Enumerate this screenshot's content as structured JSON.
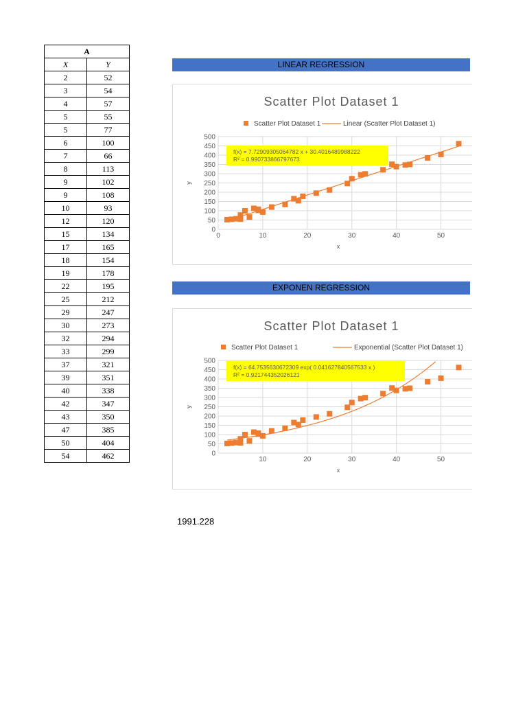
{
  "table": {
    "column_letter": "A",
    "x_header": "X",
    "y_header": "Y",
    "rows": [
      [
        "2",
        "52"
      ],
      [
        "3",
        "54"
      ],
      [
        "4",
        "57"
      ],
      [
        "5",
        "55"
      ],
      [
        "5",
        "77"
      ],
      [
        "6",
        "100"
      ],
      [
        "7",
        "66"
      ],
      [
        "8",
        "113"
      ],
      [
        "9",
        "102"
      ],
      [
        "9",
        "108"
      ],
      [
        "10",
        "93"
      ],
      [
        "12",
        "120"
      ],
      [
        "15",
        "134"
      ],
      [
        "17",
        "165"
      ],
      [
        "18",
        "154"
      ],
      [
        "19",
        "178"
      ],
      [
        "22",
        "195"
      ],
      [
        "25",
        "212"
      ],
      [
        "29",
        "247"
      ],
      [
        "30",
        "273"
      ],
      [
        "32",
        "294"
      ],
      [
        "33",
        "299"
      ],
      [
        "37",
        "321"
      ],
      [
        "39",
        "351"
      ],
      [
        "40",
        "338"
      ],
      [
        "42",
        "347"
      ],
      [
        "43",
        "350"
      ],
      [
        "47",
        "385"
      ],
      [
        "50",
        "404"
      ],
      [
        "54",
        "462"
      ]
    ]
  },
  "sections": {
    "linear_title": "LINEAR REGRESSION",
    "exp_title": "EXPONEN REGRESSION"
  },
  "footer_value": "1991.228",
  "chart_data": [
    {
      "type": "scatter",
      "title": "Scatter Plot Dataset 1",
      "xlabel": "x",
      "ylabel": "y",
      "xlim": [
        0,
        57
      ],
      "ylim": [
        0,
        500
      ],
      "xticks": [
        0,
        10,
        20,
        30,
        40,
        50
      ],
      "yticks": [
        0,
        50,
        100,
        150,
        200,
        250,
        300,
        350,
        400,
        450,
        500
      ],
      "grid": true,
      "legend_position": "top",
      "series": [
        {
          "name": "Scatter Plot Dataset 1",
          "color": "#ed7d31",
          "marker": "square",
          "x": [
            2,
            3,
            4,
            5,
            5,
            6,
            7,
            8,
            9,
            9,
            10,
            12,
            15,
            17,
            18,
            19,
            22,
            25,
            29,
            30,
            32,
            33,
            37,
            39,
            40,
            42,
            43,
            47,
            50,
            54
          ],
          "y": [
            52,
            54,
            57,
            55,
            77,
            100,
            66,
            113,
            102,
            108,
            93,
            120,
            134,
            165,
            154,
            178,
            195,
            212,
            247,
            273,
            294,
            299,
            321,
            351,
            338,
            347,
            350,
            385,
            404,
            462
          ]
        }
      ],
      "trendline": {
        "name": "Linear (Scatter Plot Dataset 1)",
        "kind": "linear",
        "color": "#ed7d31",
        "slope": 7.72909305064782,
        "intercept": 30.4016489988222,
        "x_range": [
          2,
          54
        ]
      },
      "equation": {
        "line1": "f(x) = 7.72909305064782 x + 30.4016489988222",
        "r2_label": "R² = ",
        "r2_value": "0.990733866797673",
        "background": "#ffff00"
      }
    },
    {
      "type": "scatter",
      "title": "Scatter Plot Dataset 1",
      "xlabel": "x",
      "ylabel": "y",
      "xlim": [
        0,
        57
      ],
      "ylim": [
        0,
        500
      ],
      "xticks": [
        10,
        20,
        30,
        40,
        50
      ],
      "yticks": [
        0,
        50,
        100,
        150,
        200,
        250,
        300,
        350,
        400,
        450,
        500
      ],
      "grid": true,
      "legend_position": "top",
      "series": [
        {
          "name": "Scatter Plot Dataset 1",
          "color": "#ed7d31",
          "marker": "square",
          "x": [
            2,
            3,
            4,
            5,
            5,
            6,
            7,
            8,
            9,
            9,
            10,
            12,
            15,
            17,
            18,
            19,
            22,
            25,
            29,
            30,
            32,
            33,
            37,
            39,
            40,
            42,
            43,
            47,
            50,
            54
          ],
          "y": [
            52,
            54,
            57,
            55,
            77,
            100,
            66,
            113,
            102,
            108,
            93,
            120,
            134,
            165,
            154,
            178,
            195,
            212,
            247,
            273,
            294,
            299,
            321,
            351,
            338,
            347,
            350,
            385,
            404,
            462
          ]
        }
      ],
      "trendline": {
        "name": "Exponential (Scatter Plot Dataset 1)",
        "kind": "exponential",
        "color": "#ed7d31",
        "a": 64.7535630672309,
        "b": 0.041627840567533,
        "x_range": [
          2,
          54
        ]
      },
      "equation": {
        "line1": "f(x) = 64.7535630672309 exp( 0.041627840567533 x )",
        "r2_label": "R² = ",
        "r2_value": "0.921744352026121",
        "background": "#ffff00"
      }
    }
  ]
}
